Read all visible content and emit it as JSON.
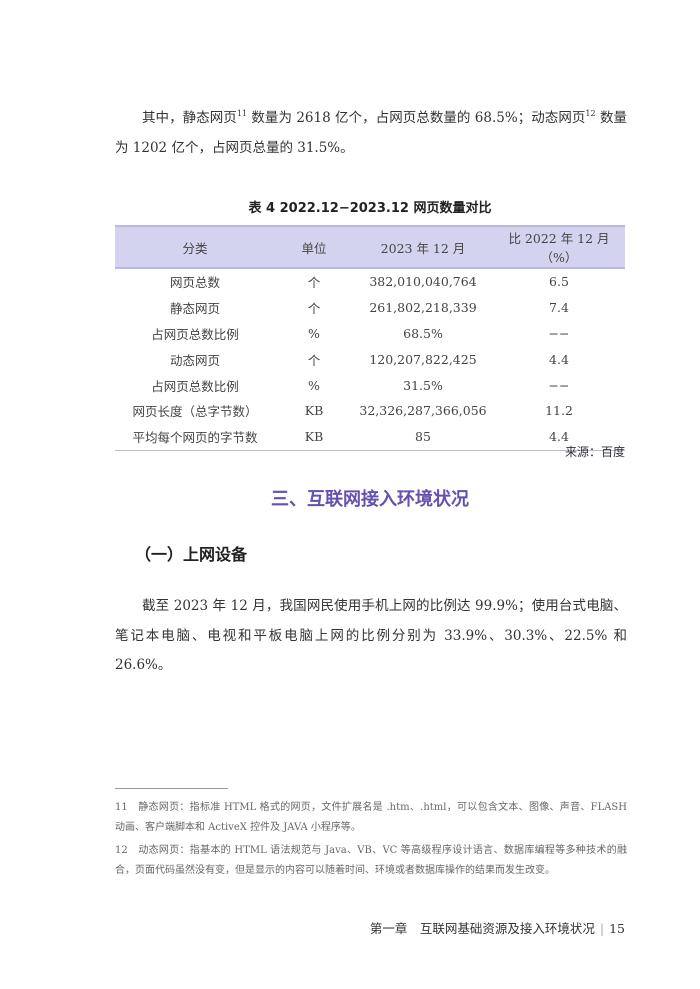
{
  "intro": {
    "part1": "其中，静态网页",
    "sup1": "11",
    "part2": " 数量为 2618 亿个，占网页总数量的 68.5%；动态网页",
    "sup2": "12",
    "part3": " 数量为 1202 亿个，占网页总量的 31.5%。"
  },
  "table": {
    "title": "表 4  2022.12−2023.12 网页数量对比",
    "headers": [
      "分类",
      "单位",
      "2023 年 12 月",
      "比 2022 年 12 月（%）"
    ],
    "rows": [
      [
        "网页总数",
        "个",
        "382,010,040,764",
        "6.5"
      ],
      [
        "静态网页",
        "个",
        "261,802,218,339",
        "7.4"
      ],
      [
        "占网页总数比例",
        "%",
        "68.5%",
        "−−"
      ],
      [
        "动态网页",
        "个",
        "120,207,822,425",
        "4.4"
      ],
      [
        "占网页总数比例",
        "%",
        "31.5%",
        "−−"
      ],
      [
        "网页长度（总字节数）",
        "KB",
        "32,326,287,366,056",
        "11.2"
      ],
      [
        "平均每个网页的字节数",
        "KB",
        "85",
        "4.4"
      ]
    ],
    "source": "来源：百度",
    "header_bg": "#d3d3ef"
  },
  "section": {
    "title": "三、互联网接入环境状况",
    "title_color": "#6550b0",
    "subtitle": "（一）上网设备",
    "paragraph": "截至 2023 年 12 月，我国网民使用手机上网的比例达 99.9%；使用台式电脑、笔记本电脑、电视和平板电脑上网的比例分别为 33.9%、30.3%、22.5% 和 26.6%。"
  },
  "footnotes": [
    "11　静态网页：指标准 HTML 格式的网页，文件扩展名是 .htm、.html，可以包含文本、图像、声音、FLASH 动画、客户端脚本和 ActiveX 控件及 JAVA 小程序等。",
    "12　动态网页：指基本的 HTML 语法规范与 Java、VB、VC 等高级程序设计语言、数据库编程等多种技术的融合，页面代码虽然没有变，但是显示的内容可以随着时间、环境或者数据库操作的结果而发生改变。"
  ],
  "footer": {
    "chapter": "第一章　互联网基础资源及接入环境状况",
    "separator": "|",
    "page": "15"
  }
}
